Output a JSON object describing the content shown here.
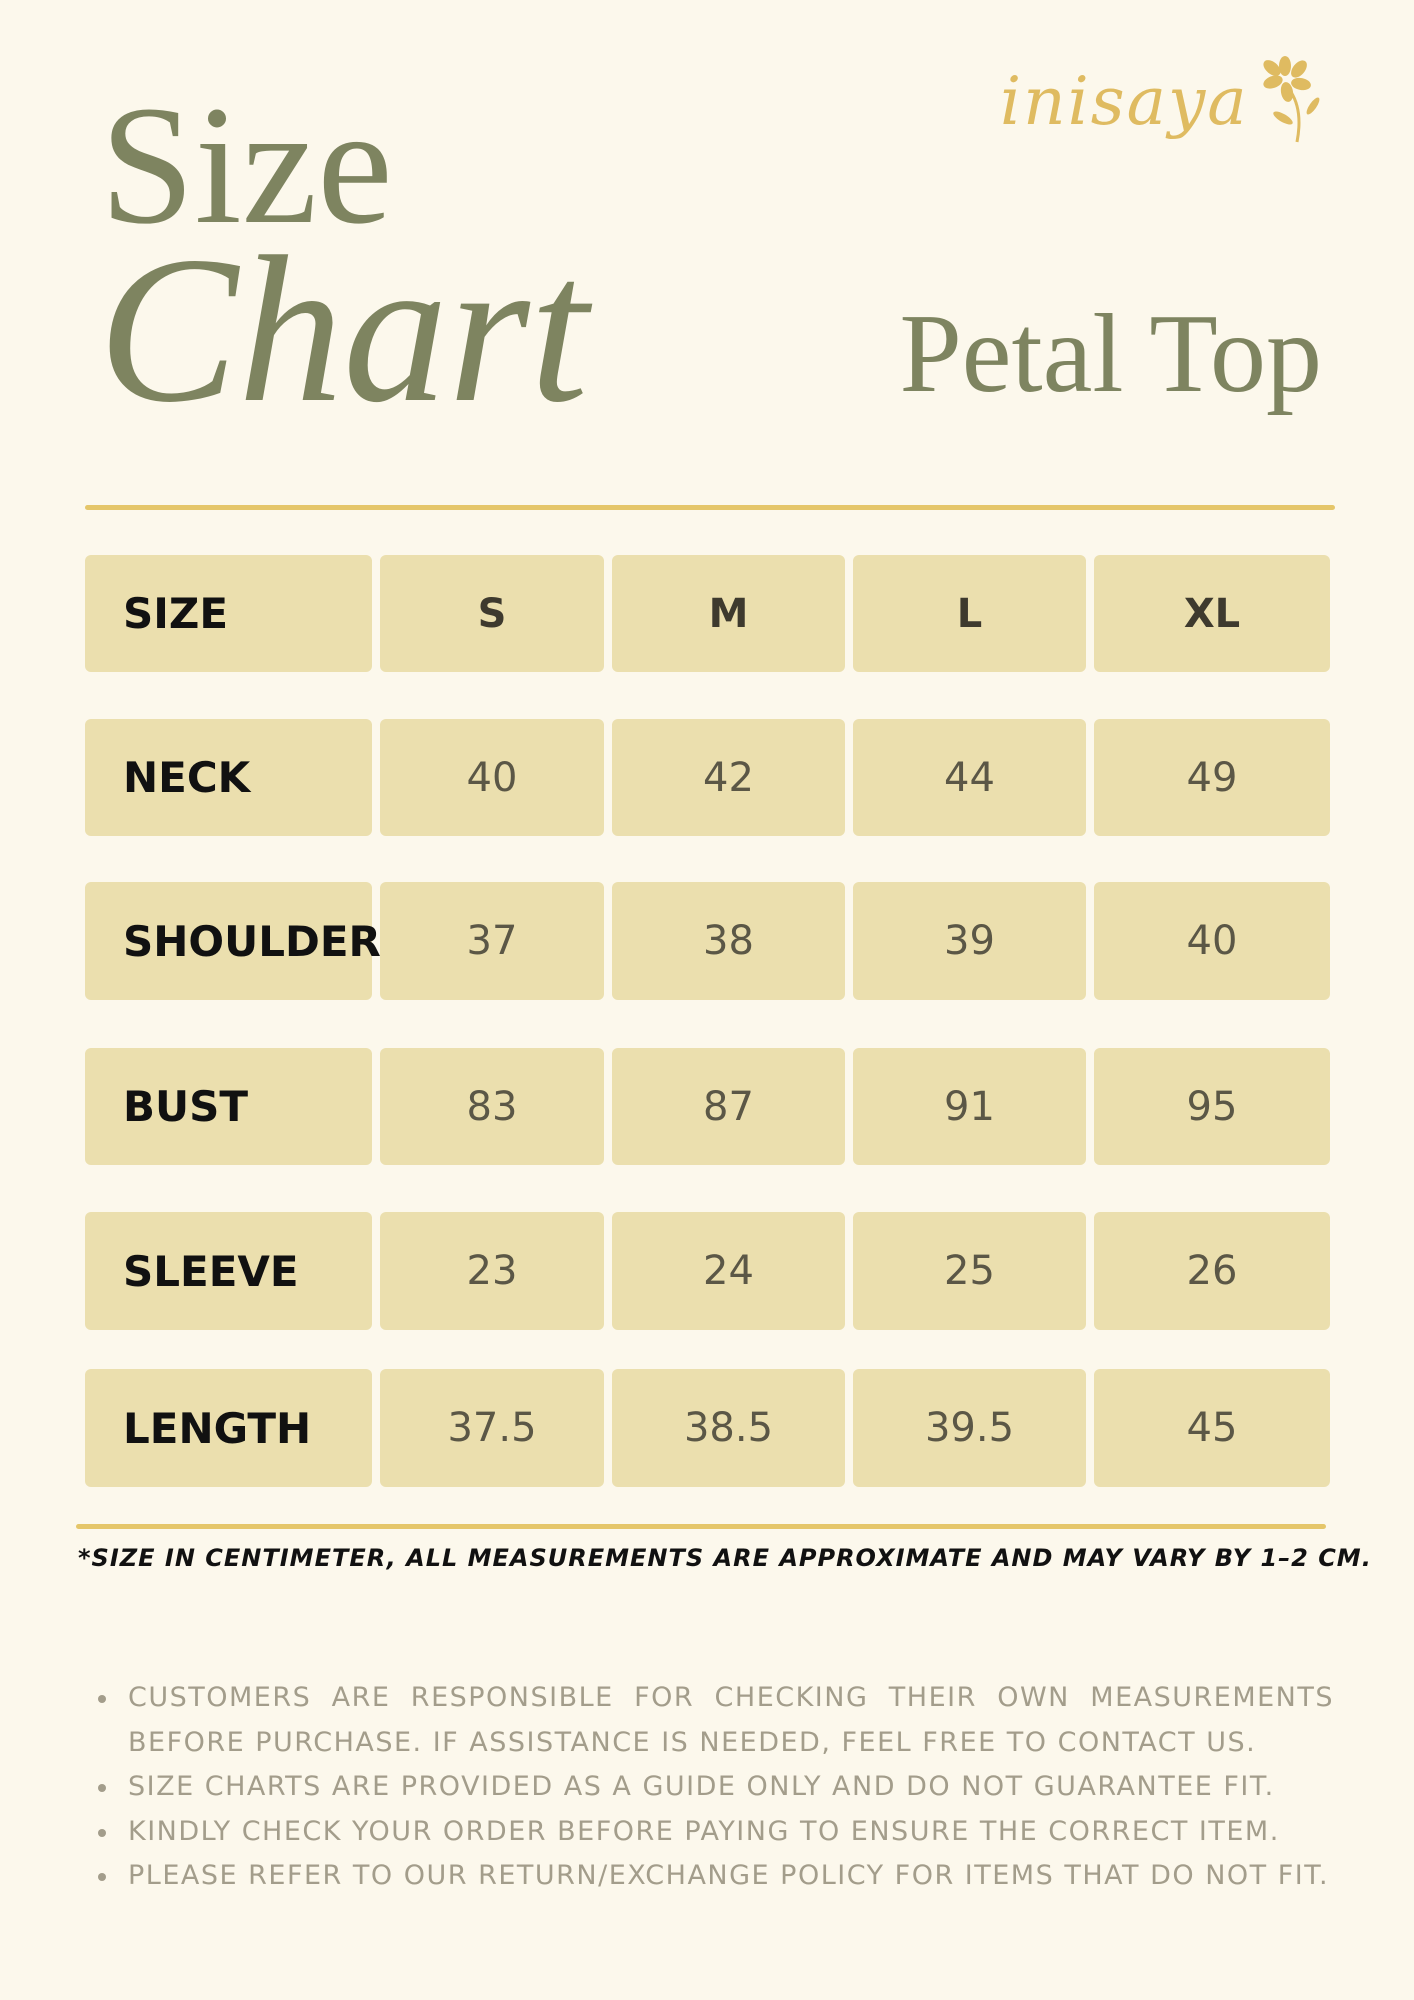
{
  "title": {
    "line1": "Size",
    "line2": "Chart"
  },
  "product": "Petal Top",
  "brand": "inisaya",
  "colors": {
    "background": "#fcf8ec",
    "title": "#7e8460",
    "gold": "#e5c66a",
    "cell": "#ebdfae"
  },
  "table": {
    "header": [
      "SIZE",
      "S",
      "M",
      "L",
      "XL"
    ],
    "rows": [
      [
        "NECK",
        "40",
        "42",
        "44",
        "49"
      ],
      [
        "SHOULDER",
        "37",
        "38",
        "39",
        "40"
      ],
      [
        "BUST",
        "83",
        "87",
        "91",
        "95"
      ],
      [
        "SLEEVE",
        "23",
        "24",
        "25",
        "26"
      ],
      [
        "LENGTH",
        "37.5",
        "38.5",
        "39.5",
        "45"
      ]
    ]
  },
  "footnote": "*SIZE IN CENTIMETER, ALL MEASUREMENTS ARE APPROXIMATE AND MAY VARY BY 1–2 CM.",
  "notes": [
    "CUSTOMERS ARE RESPONSIBLE FOR CHECKING THEIR OWN MEASUREMENTS BEFORE PURCHASE. IF ASSISTANCE IS NEEDED, FEEL FREE TO CONTACT US.",
    "SIZE CHARTS ARE PROVIDED AS A GUIDE ONLY AND DO NOT GUARANTEE FIT.",
    "KINDLY CHECK YOUR ORDER BEFORE PAYING TO ENSURE THE CORRECT ITEM.",
    "PLEASE REFER TO OUR RETURN/EXCHANGE POLICY FOR ITEMS THAT DO NOT FIT."
  ]
}
